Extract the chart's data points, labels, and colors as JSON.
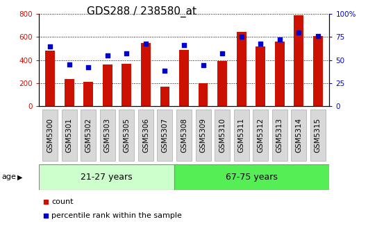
{
  "title": "GDS288 / 238580_at",
  "categories": [
    "GSM5300",
    "GSM5301",
    "GSM5302",
    "GSM5303",
    "GSM5305",
    "GSM5306",
    "GSM5307",
    "GSM5308",
    "GSM5309",
    "GSM5310",
    "GSM5311",
    "GSM5312",
    "GSM5313",
    "GSM5314",
    "GSM5315"
  ],
  "counts": [
    480,
    235,
    210,
    360,
    365,
    545,
    170,
    490,
    200,
    390,
    645,
    515,
    560,
    790,
    610
  ],
  "percentiles": [
    65,
    45,
    42,
    55,
    57,
    68,
    38,
    66,
    44,
    57,
    75,
    68,
    72,
    80,
    76
  ],
  "bar_color": "#cc1100",
  "dot_color": "#0000cc",
  "ylim_left": [
    0,
    800
  ],
  "ylim_right": [
    0,
    100
  ],
  "yticks_left": [
    0,
    200,
    400,
    600,
    800
  ],
  "yticks_right": [
    0,
    25,
    50,
    75,
    100
  ],
  "ytick_labels_right": [
    "0",
    "25",
    "50",
    "75",
    "100%"
  ],
  "group1_label": "21-27 years",
  "group2_label": "67-75 years",
  "group1_count": 7,
  "group2_count": 8,
  "age_label": "age",
  "group1_color": "#ccffcc",
  "group2_color": "#55ee55",
  "legend_count_label": "count",
  "legend_pct_label": "percentile rank within the sample",
  "title_fontsize": 11,
  "tick_fontsize": 7.5,
  "bar_width": 0.5,
  "grid_color": "#000000",
  "tickbox_color": "#d8d8d8",
  "tickbox_edge": "#aaaaaa"
}
